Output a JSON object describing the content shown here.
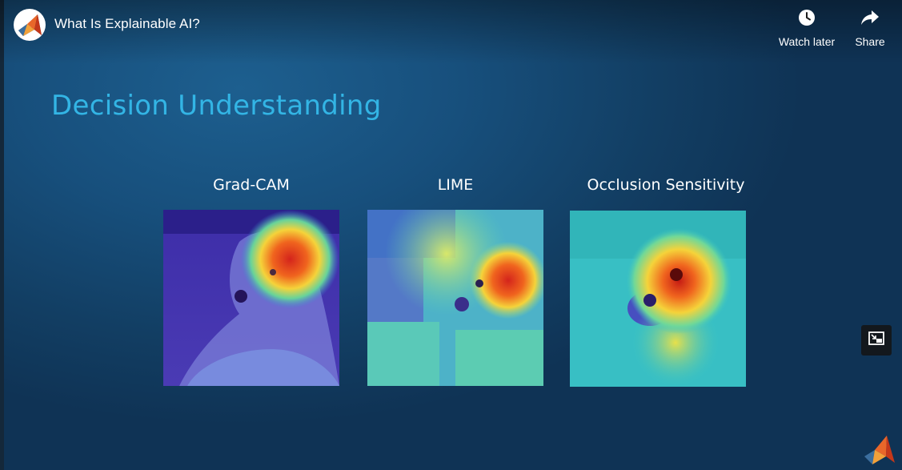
{
  "player": {
    "title": "What Is Explainable AI?",
    "actions": {
      "watch_later": {
        "label": "Watch later",
        "icon": "clock-icon"
      },
      "share": {
        "label": "Share",
        "icon": "share-arrow-icon"
      }
    },
    "pip_icon": "picture-in-picture-icon"
  },
  "slide": {
    "heading": "Decision Understanding",
    "heading_color": "#33b5e5",
    "panels": [
      {
        "label": "Grad-CAM"
      },
      {
        "label": "LIME"
      },
      {
        "label": "Occlusion Sensitivity"
      }
    ]
  },
  "colors": {
    "background": "#174f7c",
    "brand_orange": "#e8672a"
  }
}
